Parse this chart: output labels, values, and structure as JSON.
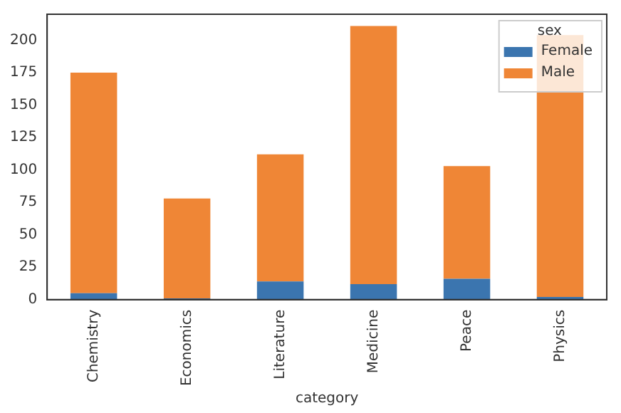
{
  "chart_data": {
    "type": "bar",
    "stacked": true,
    "xlabel": "category",
    "legend_title": "sex",
    "legend": "top right",
    "grid": false,
    "categories": [
      "Chemistry",
      "Economics",
      "Literature",
      "Medicine",
      "Peace",
      "Physics"
    ],
    "ylim": [
      0,
      220
    ],
    "yticks": [
      0,
      25,
      50,
      75,
      100,
      125,
      150,
      175,
      200
    ],
    "series": [
      {
        "name": "Female",
        "color": "#3b75af",
        "values": [
          5,
          1,
          14,
          12,
          16,
          2
        ]
      },
      {
        "name": "Male",
        "color": "#ef8636",
        "values": [
          170,
          77,
          98,
          199,
          87,
          202
        ]
      }
    ]
  }
}
